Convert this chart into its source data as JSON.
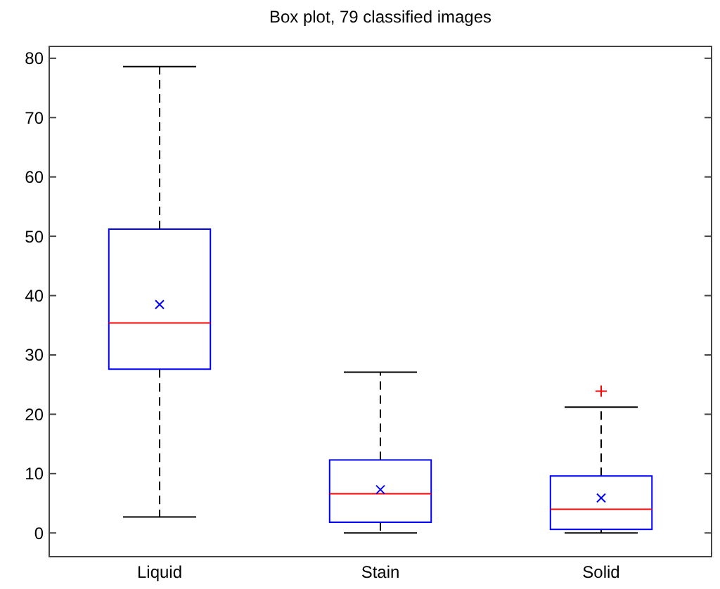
{
  "chart_data": {
    "type": "box",
    "title": "Box plot, 79 classified images",
    "categories": [
      "Liquid",
      "Stain",
      "Solid"
    ],
    "boxes": [
      {
        "low": 2.7,
        "q1": 27.6,
        "median": 35.4,
        "q3": 51.2,
        "high": 78.6,
        "mean": 38.5
      },
      {
        "low": 0,
        "q1": 1.8,
        "median": 6.6,
        "q3": 12.3,
        "high": 27.1,
        "mean": 7.3
      },
      {
        "low": 0,
        "q1": 0.6,
        "median": 4.0,
        "q3": 9.6,
        "high": 21.2,
        "mean": 5.9,
        "outliers": [
          23.9
        ]
      }
    ],
    "ylim": [
      -4,
      82
    ],
    "yticks": [
      0,
      10,
      20,
      30,
      40,
      50,
      60,
      70,
      80
    ],
    "grid": false
  }
}
